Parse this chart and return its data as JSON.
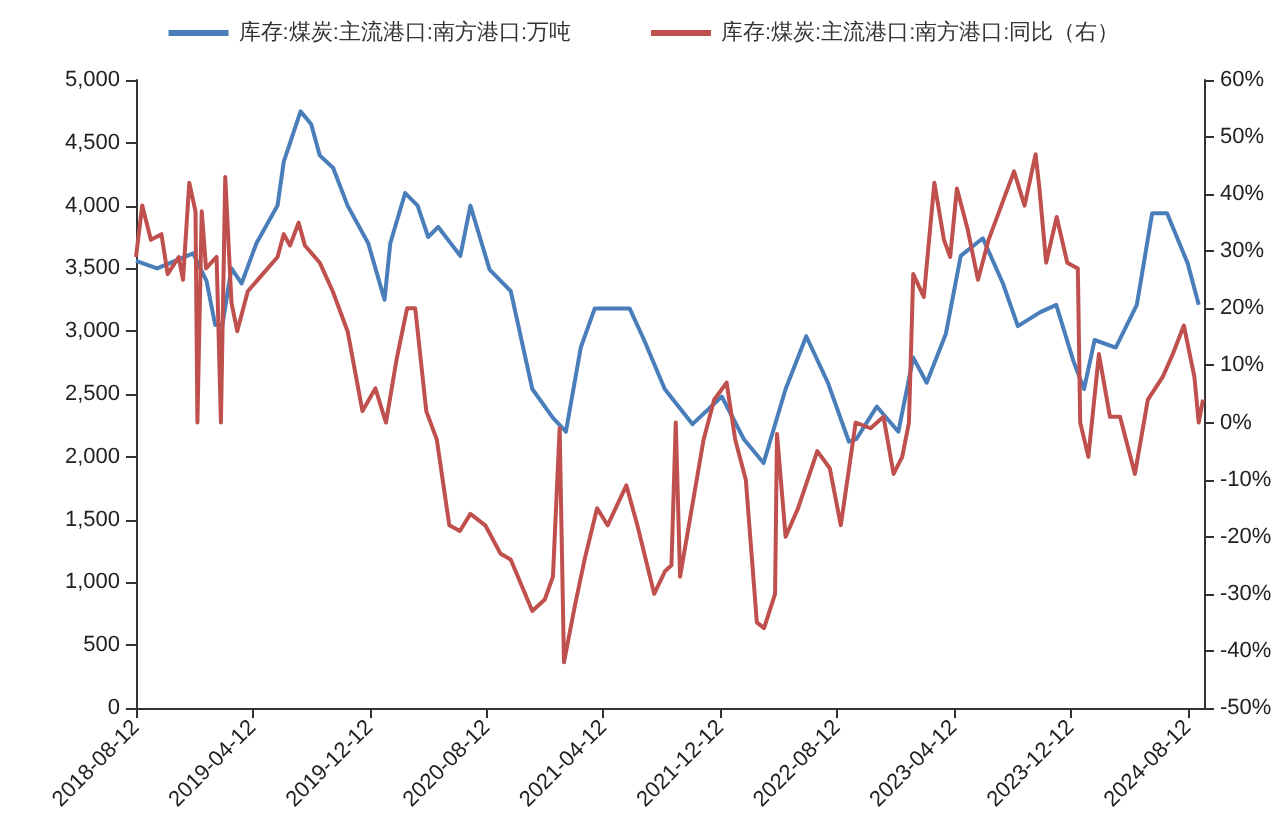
{
  "chart_data": {
    "type": "line",
    "legend": "top",
    "grid": false,
    "marker": "none",
    "line_style": "solid",
    "xlim": [
      "2018-08-12",
      "2024-09-15"
    ],
    "xticks": [
      "2018-08-12",
      "2019-04-12",
      "2019-12-12",
      "2020-08-12",
      "2021-04-12",
      "2021-12-12",
      "2022-08-12",
      "2023-04-12",
      "2023-12-12",
      "2024-08-12"
    ],
    "ylim": [
      0,
      5000
    ],
    "yticks": [
      0,
      500,
      {
        "value": 1000,
        "label": "1,000"
      },
      {
        "value": 1500,
        "label": "1,500"
      },
      {
        "value": 2000,
        "label": "2,000"
      },
      {
        "value": 2500,
        "label": "2,500"
      },
      {
        "value": 3000,
        "label": "3,000"
      },
      {
        "value": 3500,
        "label": "3,500"
      },
      {
        "value": 4000,
        "label": "4,000"
      },
      {
        "value": 4500,
        "label": "4,500"
      },
      {
        "value": 5000,
        "label": "5,000"
      }
    ],
    "y2lim": [
      -50,
      60
    ],
    "y2ticks": [
      {
        "value": -50,
        "label": "-50%"
      },
      {
        "value": -40,
        "label": "-40%"
      },
      {
        "value": -30,
        "label": "-30%"
      },
      {
        "value": -20,
        "label": "-20%"
      },
      {
        "value": -10,
        "label": "-10%"
      },
      {
        "value": 0,
        "label": "0%"
      },
      {
        "value": 10,
        "label": "10%"
      },
      {
        "value": 20,
        "label": "20%"
      },
      {
        "value": 30,
        "label": "30%"
      },
      {
        "value": 40,
        "label": "40%"
      },
      {
        "value": 50,
        "label": "50%"
      },
      {
        "value": 60,
        "label": "60%"
      }
    ],
    "series": [
      {
        "name": "库存:煤炭:主流港口:南方港口:万吨",
        "color": "#4a7ebb",
        "x": [
          "2018-08-12",
          "2018-09-25",
          "2018-12-09",
          "2019-01-06",
          "2019-01-24",
          "2019-02-08",
          "2019-02-27",
          "2019-03-20",
          "2019-04-20",
          "2019-06-03",
          "2019-06-16",
          "2019-07-21",
          "2019-08-12",
          "2019-08-30",
          "2019-09-27",
          "2019-10-27",
          "2019-12-09",
          "2020-01-12",
          "2020-01-24",
          "2020-02-24",
          "2020-03-21",
          "2020-04-12",
          "2020-05-03",
          "2020-06-18",
          "2020-07-09",
          "2020-08-18",
          "2020-10-01",
          "2020-11-15",
          "2020-12-28",
          "2021-01-24",
          "2021-02-24",
          "2021-03-25",
          "2021-06-06",
          "2021-07-06",
          "2021-08-18",
          "2021-10-15",
          "2021-12-15",
          "2022-01-30",
          "2022-03-12",
          "2022-04-27",
          "2022-06-09",
          "2022-07-24",
          "2022-09-06",
          "2022-09-21",
          "2022-11-03",
          "2022-12-18",
          "2023-01-18",
          "2023-02-15",
          "2023-03-27",
          "2023-04-27",
          "2023-06-12",
          "2023-07-24",
          "2023-08-24",
          "2023-10-09",
          "2023-11-12",
          "2023-12-18",
          "2024-01-09",
          "2024-01-31",
          "2024-03-15",
          "2024-04-28",
          "2024-05-30",
          "2024-06-30",
          "2024-08-12",
          "2024-09-04"
        ],
        "values": [
          3560,
          3500,
          3620,
          3400,
          3050,
          3050,
          3500,
          3380,
          3700,
          4000,
          4350,
          4750,
          4650,
          4400,
          4300,
          4000,
          3700,
          3250,
          3700,
          4100,
          4000,
          3750,
          3830,
          3600,
          4000,
          3490,
          3320,
          2540,
          2310,
          2200,
          2870,
          3180,
          3180,
          2930,
          2540,
          2260,
          2480,
          2140,
          1950,
          2540,
          2960,
          2590,
          2120,
          2140,
          2400,
          2200,
          2790,
          2590,
          2980,
          3600,
          3740,
          3380,
          3040,
          3150,
          3210,
          2760,
          2540,
          2930,
          2870,
          3210,
          3940,
          3940,
          3540,
          3210
        ]
      },
      {
        "name": "库存:煤炭:主流港口:南方港口:同比（右）",
        "color": "#c0504d",
        "axis": "y2",
        "x": [
          "2018-08-12",
          "2018-08-25",
          "2018-09-12",
          "2018-10-04",
          "2018-10-17",
          "2018-11-09",
          "2018-11-18",
          "2018-12-01",
          "2018-12-14",
          "2018-12-18",
          "2018-12-27",
          "2019-01-05",
          "2019-01-27",
          "2019-02-05",
          "2019-02-14",
          "2019-02-27",
          "2019-03-11",
          "2019-04-02",
          "2019-05-03",
          "2019-06-03",
          "2019-06-16",
          "2019-06-29",
          "2019-07-17",
          "2019-07-30",
          "2019-08-30",
          "2019-09-26",
          "2019-10-27",
          "2019-11-27",
          "2019-12-24",
          "2020-01-15",
          "2020-02-06",
          "2020-02-28",
          "2020-03-16",
          "2020-04-08",
          "2020-04-30",
          "2020-05-26",
          "2020-06-17",
          "2020-07-09",
          "2020-08-09",
          "2020-09-10",
          "2020-10-01",
          "2020-11-15",
          "2020-12-11",
          "2020-12-28",
          "2021-01-11",
          "2021-01-20",
          "2021-02-12",
          "2021-03-04",
          "2021-03-30",
          "2021-04-21",
          "2021-05-30",
          "2021-06-22",
          "2021-07-27",
          "2021-08-19",
          "2021-09-01",
          "2021-09-10",
          "2021-09-19",
          "2021-11-07",
          "2021-11-29",
          "2021-12-25",
          "2022-01-12",
          "2022-02-03",
          "2022-02-26",
          "2022-03-13",
          "2022-04-05",
          "2022-04-09",
          "2022-04-27",
          "2022-05-23",
          "2022-07-02",
          "2022-07-28",
          "2022-08-20",
          "2022-09-20",
          "2022-10-21",
          "2022-11-17",
          "2022-12-08",
          "2022-12-26",
          "2023-01-09",
          "2023-01-18",
          "2023-02-09",
          "2023-03-03",
          "2023-03-23",
          "2023-04-05",
          "2023-04-19",
          "2023-05-11",
          "2023-06-02",
          "2023-06-24",
          "2023-07-25",
          "2023-08-16",
          "2023-09-07",
          "2023-09-30",
          "2023-10-08",
          "2023-10-22",
          "2023-11-13",
          "2023-12-05",
          "2023-12-27",
          "2024-01-01",
          "2024-01-18",
          "2024-02-09",
          "2024-03-03",
          "2024-03-24",
          "2024-04-24",
          "2024-05-21",
          "2024-06-21",
          "2024-07-12",
          "2024-08-04",
          "2024-08-26",
          "2024-09-04",
          "2024-09-13"
        ],
        "values": [
          29,
          38,
          32,
          33,
          26,
          29,
          25,
          42,
          37,
          0,
          37,
          27,
          29,
          0,
          43,
          21,
          16,
          23,
          26,
          29,
          33,
          31,
          35,
          31,
          28,
          23,
          16,
          2,
          6,
          0,
          11,
          20,
          20,
          2,
          -3,
          -18,
          -19,
          -16,
          -18,
          -23,
          -24,
          -33,
          -31,
          -27,
          -1,
          -42,
          -32,
          -24,
          -15,
          -18,
          -11,
          -18,
          -30,
          -26,
          -25,
          0,
          -27,
          -3,
          4,
          7,
          -3,
          -10,
          -35,
          -36,
          -30,
          -2,
          -20,
          -15,
          -5,
          -8,
          -18,
          0,
          -1,
          1,
          -9,
          -6,
          0,
          26,
          22,
          42,
          32,
          29,
          41,
          34,
          25,
          32,
          39,
          44,
          38,
          47,
          41,
          28,
          36,
          28,
          27,
          0,
          -6,
          12,
          1,
          1,
          -9,
          4,
          8,
          12,
          17,
          8,
          0,
          4
        ]
      }
    ]
  }
}
